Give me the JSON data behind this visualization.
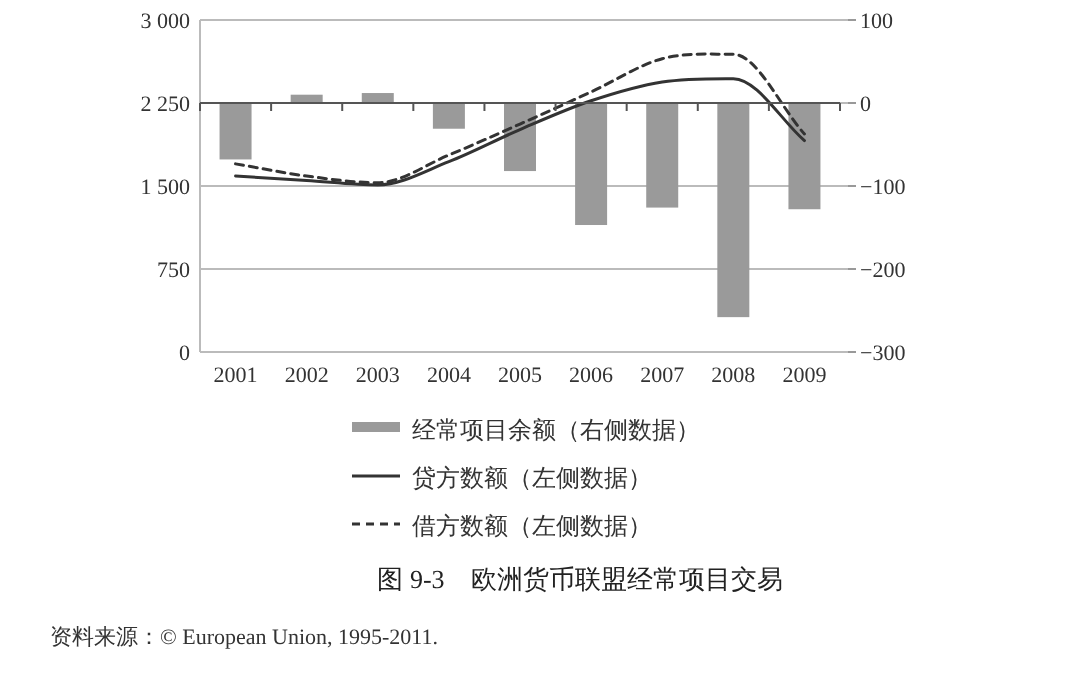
{
  "chart_data": {
    "type": "bar",
    "title": "图 9-3　欧洲货币联盟经常项目交易",
    "categories": [
      "2001",
      "2002",
      "2003",
      "2004",
      "2005",
      "2006",
      "2007",
      "2008",
      "2009"
    ],
    "series": [
      {
        "name": "经常项目余额（右侧数据）",
        "axis": "y2",
        "color": "#9a9a9a",
        "values": [
          -68,
          10,
          12,
          -31,
          -82,
          -147,
          -126,
          -258,
          -128
        ]
      },
      {
        "name": "贷方数额（左侧数据）",
        "type": "line",
        "axis": "y",
        "color": "#333333",
        "line_style": "solid",
        "values": [
          1590,
          1550,
          1510,
          1720,
          2010,
          2270,
          2440,
          2470,
          1910
        ]
      },
      {
        "name": "借方数额（左侧数据）",
        "type": "line",
        "axis": "y",
        "color": "#333333",
        "line_style": "dashed",
        "values": [
          1700,
          1590,
          1530,
          1780,
          2060,
          2350,
          2650,
          2690,
          1970
        ]
      }
    ],
    "ylim": [
      0,
      3000
    ],
    "yticks": [
      0,
      750,
      {
        "value": 1500,
        "label": "1 500"
      },
      {
        "value": 2250,
        "label": "2 250"
      },
      {
        "value": 3000,
        "label": "3 000"
      }
    ],
    "y2lim": [
      -300,
      100
    ],
    "y2ticks": [
      {
        "value": -300,
        "label": "−300"
      },
      {
        "value": -200,
        "label": "−200"
      },
      {
        "value": -100,
        "label": "−100"
      },
      0,
      100
    ],
    "grid": "y",
    "legend": "bottom",
    "marker": "none",
    "annotations": [
      "资料来源：© European Union, 1995-2011."
    ]
  }
}
